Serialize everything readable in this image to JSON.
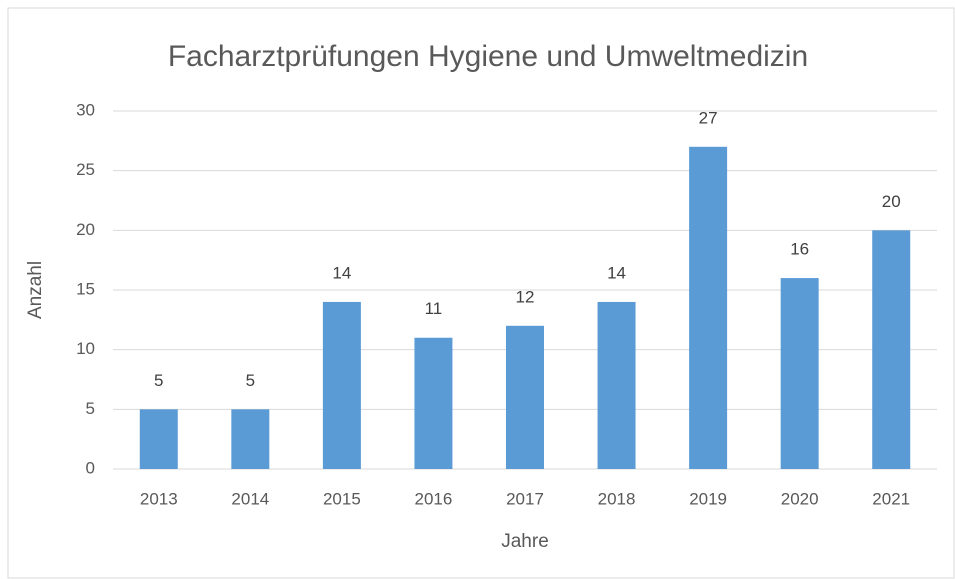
{
  "chart_data": {
    "type": "bar",
    "title": "Facharztprüfungen Hygiene und Umweltmedizin",
    "x_label": "Jahre",
    "y_label": "Anzahl",
    "categories": [
      "2013",
      "2014",
      "2015",
      "2016",
      "2017",
      "2018",
      "2019",
      "2020",
      "2021"
    ],
    "values": [
      5,
      5,
      14,
      11,
      12,
      14,
      27,
      16,
      20
    ],
    "color": "#5b9bd5",
    "ylim": [
      0,
      30
    ],
    "yticks": [
      0,
      5,
      10,
      15,
      20,
      25,
      30
    ],
    "grid": true,
    "data_labels": true
  }
}
